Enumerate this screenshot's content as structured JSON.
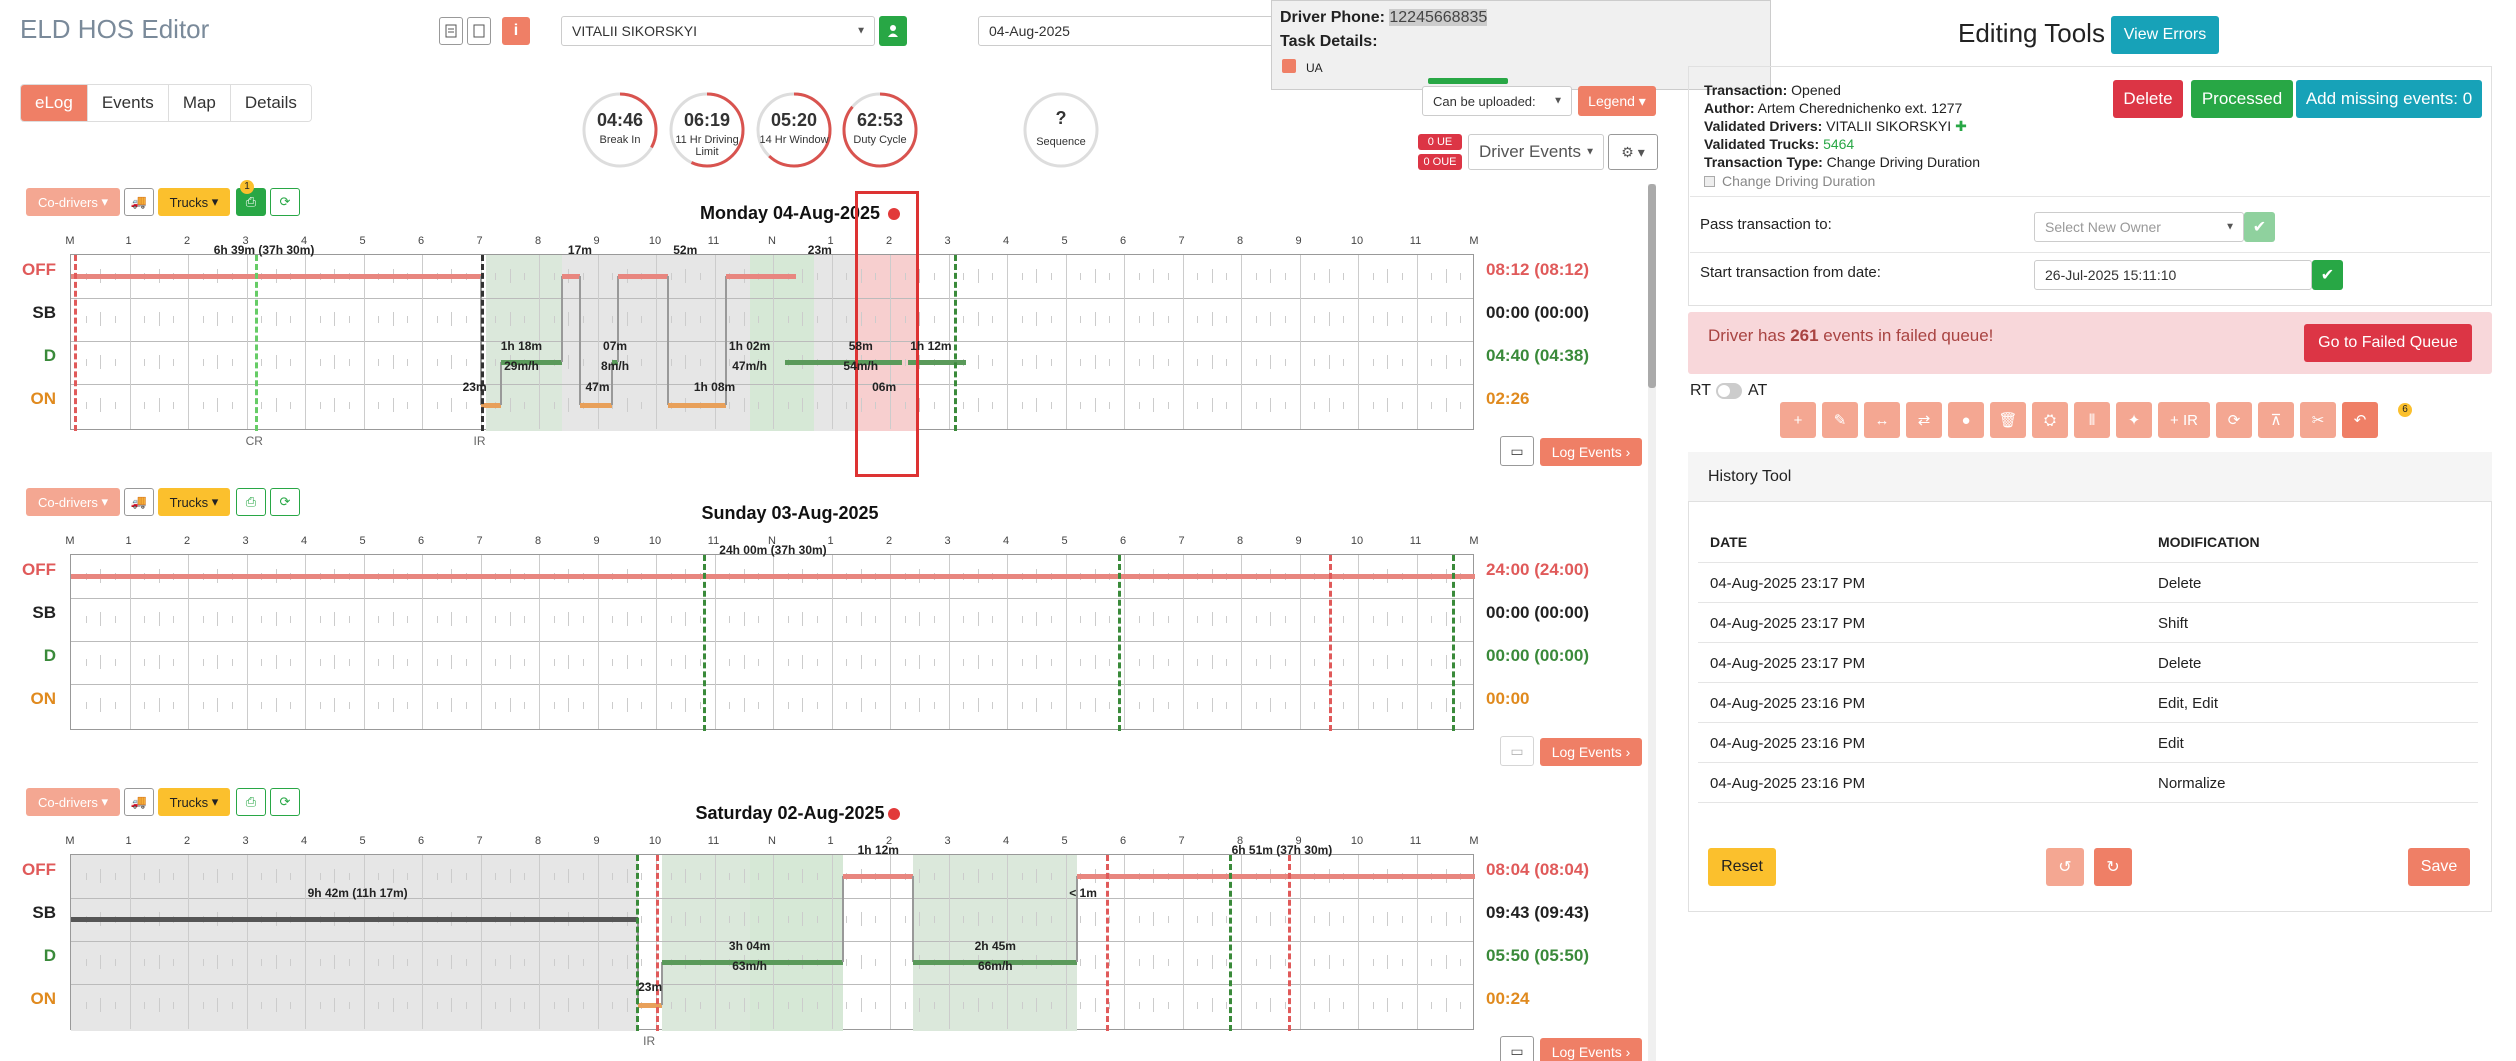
{
  "header": {
    "title": "ELD HOS Editor",
    "driver_value": "VITALII SIKORSKYI",
    "date_value": "04-Aug-2025"
  },
  "popup": {
    "phone_label": "Driver Phone:",
    "phone_value": "12245668835",
    "task_label": "Task Details:",
    "flag_label": "UA"
  },
  "tabs": [
    "eLog",
    "Events",
    "Map",
    "Details"
  ],
  "gauges": [
    {
      "value": "04:46",
      "label": "Break In",
      "fraction": 0.33,
      "color": "#d9534f"
    },
    {
      "value": "06:19",
      "label": "11 Hr Driving Limit",
      "fraction": 0.57,
      "color": "#d9534f"
    },
    {
      "value": "05:20",
      "label": "14 Hr Window",
      "fraction": 0.62,
      "color": "#d9534f"
    },
    {
      "value": "62:53",
      "label": "Duty Cycle",
      "fraction": 0.86,
      "color": "#d9534f"
    },
    {
      "value": "?",
      "label": "Sequence",
      "fraction": 0,
      "color": "#999"
    }
  ],
  "controls": {
    "can_upload": "Can be uploaded:",
    "legend": "Legend",
    "ue": "0 UE",
    "oue": "0 OUE",
    "driver_events": "Driver Events"
  },
  "day_buttons": {
    "codrivers": "Co-drivers",
    "trucks": "Trucks",
    "badge": "1",
    "log_events": "Log Events"
  },
  "rows": [
    "OFF",
    "SB",
    "D",
    "ON"
  ],
  "hour_labels": [
    "M",
    "1",
    "2",
    "3",
    "4",
    "5",
    "6",
    "7",
    "8",
    "9",
    "10",
    "11",
    "N",
    "1",
    "2",
    "3",
    "4",
    "5",
    "6",
    "7",
    "8",
    "9",
    "10",
    "11",
    "M"
  ],
  "days": [
    {
      "title": "Monday 04-Aug-2025",
      "totals": [
        "08:12 (08:12)",
        "00:00 (00:00)",
        "04:40 (04:38)",
        "02:26"
      ],
      "annotations": [
        "6h 39m (37h 30m)",
        "17m",
        "52m",
        "23m",
        "1h 18m",
        "29m/h",
        "07m",
        "8m/h",
        "1h 02m",
        "47m/h",
        "58m",
        "54m/h",
        "1h 12m",
        "47m",
        "1h 08m",
        "06m",
        "23m"
      ],
      "markers": [
        "CR",
        "IR"
      ]
    },
    {
      "title": "Sunday 03-Aug-2025",
      "totals": [
        "24:00 (24:00)",
        "00:00 (00:00)",
        "00:00 (00:00)",
        "00:00"
      ],
      "annotations": [
        "24h 00m (37h 30m)"
      ],
      "markers": []
    },
    {
      "title": "Saturday 02-Aug-2025",
      "totals": [
        "08:04 (08:04)",
        "09:43 (09:43)",
        "05:50 (05:50)",
        "00:24"
      ],
      "annotations": [
        "1h 12m",
        "6h 51m (37h 30m)",
        "9h 42m (11h 17m)",
        "< 1m",
        "3h 04m",
        "63m/h",
        "2h 45m",
        "66m/h",
        "23m"
      ],
      "markers": [
        "IR"
      ]
    }
  ],
  "right": {
    "title": "Editing Tools",
    "view_errors": "View Errors",
    "transaction_status_label": "Transaction:",
    "transaction_status": "Opened",
    "author_label": "Author:",
    "author": "Artem Cherednichenko ext. 1277",
    "drivers_label": "Validated Drivers:",
    "drivers": "VITALII SIKORSKYI",
    "trucks_label": "Validated Trucks:",
    "trucks": "5464",
    "type_label": "Transaction Type:",
    "type": "Change Driving Duration",
    "checkbox_label": "Change Driving Duration",
    "delete": "Delete",
    "processed": "Processed",
    "add_missing": "Add missing events: 0",
    "pass_label": "Pass transaction to:",
    "pass_placeholder": "Select New Owner",
    "start_label": "Start transaction from date:",
    "start_value": "26-Jul-2025 15:11:10",
    "failed_pre": "Driver has ",
    "failed_count": "261",
    "failed_post": " events in failed queue!",
    "failed_btn": "Go to Failed Queue",
    "rt": "RT",
    "at": "AT",
    "tool_ir": "+ IR",
    "tool_badge": "6",
    "history_title": "History Tool",
    "col_date": "DATE",
    "col_mod": "MODIFICATION",
    "history": [
      {
        "date": "04-Aug-2025 23:17 PM",
        "mod": "Delete"
      },
      {
        "date": "04-Aug-2025 23:17 PM",
        "mod": "Shift"
      },
      {
        "date": "04-Aug-2025 23:17 PM",
        "mod": "Delete"
      },
      {
        "date": "04-Aug-2025 23:16 PM",
        "mod": "Edit, Edit"
      },
      {
        "date": "04-Aug-2025 23:16 PM",
        "mod": "Edit"
      },
      {
        "date": "04-Aug-2025 23:16 PM",
        "mod": "Normalize"
      }
    ],
    "reset": "Reset",
    "save": "Save"
  },
  "colors": {
    "accent": "#ef7f66",
    "off": "#e05a5a",
    "sb": "#333",
    "driving": "#3a8a3a",
    "on": "#e08a1e",
    "teal": "#17a2b8",
    "green": "#28a745",
    "red": "#dc3545"
  }
}
